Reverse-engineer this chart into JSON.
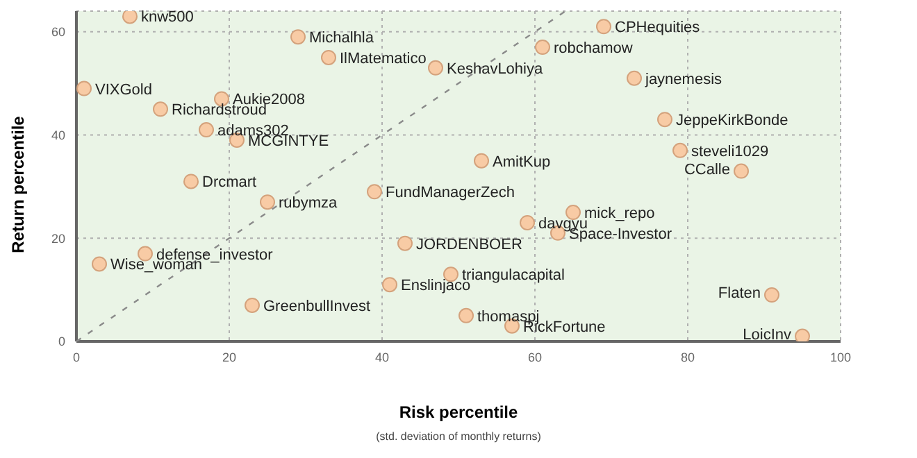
{
  "chart_data": {
    "type": "scatter",
    "xlabel": "Risk percentile",
    "ylabel": "Return percentile",
    "annotations": [
      "(std. deviation of monthly returns)",
      {
        "text": "knw500",
        "x": 7,
        "y": 63
      },
      {
        "text": "Michalhla",
        "x": 29,
        "y": 59
      },
      {
        "text": "IlMatematico",
        "x": 33,
        "y": 55
      },
      {
        "text": "KeshavLohiya",
        "x": 47,
        "y": 53
      },
      {
        "text": "CPHequities",
        "x": 69,
        "y": 61
      },
      {
        "text": "robchamow",
        "x": 61,
        "y": 57
      },
      {
        "text": "jaynemesis",
        "x": 73,
        "y": 51
      },
      {
        "text": "JeppeKirkBonde",
        "x": 77,
        "y": 43
      },
      {
        "text": "steveli1029",
        "x": 79,
        "y": 37
      },
      {
        "text": "CCalle",
        "x": 87,
        "y": 33
      },
      {
        "text": "AmitKup",
        "x": 53,
        "y": 35
      },
      {
        "text": "VIXGold",
        "x": 1,
        "y": 49
      },
      {
        "text": "Aukie2008",
        "x": 19,
        "y": 47
      },
      {
        "text": "Richardstroud",
        "x": 11,
        "y": 45
      },
      {
        "text": "adams302",
        "x": 17,
        "y": 41
      },
      {
        "text": "MCGINTYE",
        "x": 21,
        "y": 39
      },
      {
        "text": "Drcmart",
        "x": 15,
        "y": 31
      },
      {
        "text": "rubymza",
        "x": 25,
        "y": 27
      },
      {
        "text": "FundManagerZech",
        "x": 39,
        "y": 29
      },
      {
        "text": "mick_repo",
        "x": 65,
        "y": 25
      },
      {
        "text": "davgyu",
        "x": 59,
        "y": 23
      },
      {
        "text": "Space-Investor",
        "x": 63,
        "y": 21
      },
      {
        "text": "JORDENBOER",
        "x": 43,
        "y": 19
      },
      {
        "text": "defense_investor",
        "x": 9,
        "y": 17
      },
      {
        "text": "Wise_woman",
        "x": 3,
        "y": 15
      },
      {
        "text": "triangulacapital",
        "x": 49,
        "y": 13
      },
      {
        "text": "Enslinjaco",
        "x": 41,
        "y": 11
      },
      {
        "text": "GreenbullInvest",
        "x": 23,
        "y": 7
      },
      {
        "text": "Flaten",
        "x": 91,
        "y": 9
      },
      {
        "text": "thomaspj",
        "x": 51,
        "y": 5
      },
      {
        "text": "RickFortune",
        "x": 57,
        "y": 3
      },
      {
        "text": "LoicInv",
        "x": 95,
        "y": 1
      }
    ],
    "series": [
      {
        "color": "#f8cba5",
        "marker": "circle",
        "x": [
          7,
          29,
          33,
          47,
          69,
          61,
          73,
          77,
          79,
          87,
          53,
          1,
          19,
          11,
          17,
          21,
          15,
          25,
          39,
          65,
          59,
          63,
          43,
          9,
          3,
          49,
          41,
          23,
          91,
          51,
          57,
          95
        ],
        "values": [
          63,
          59,
          55,
          53,
          61,
          57,
          51,
          43,
          37,
          33,
          35,
          49,
          47,
          45,
          41,
          39,
          31,
          27,
          29,
          25,
          23,
          21,
          19,
          17,
          15,
          13,
          11,
          7,
          9,
          5,
          3,
          1
        ]
      },
      {
        "type": "line",
        "color": "#8a8a8a",
        "marker": "none",
        "line_style": "dashed",
        "x": [
          0,
          64
        ],
        "values": [
          0,
          64
        ]
      }
    ],
    "xlim": [
      0,
      100
    ],
    "xticks": [
      0,
      20,
      40,
      60,
      80,
      100
    ],
    "ylim": [
      0,
      64
    ],
    "yticks": [
      0,
      20,
      40,
      60
    ],
    "grid": true
  }
}
